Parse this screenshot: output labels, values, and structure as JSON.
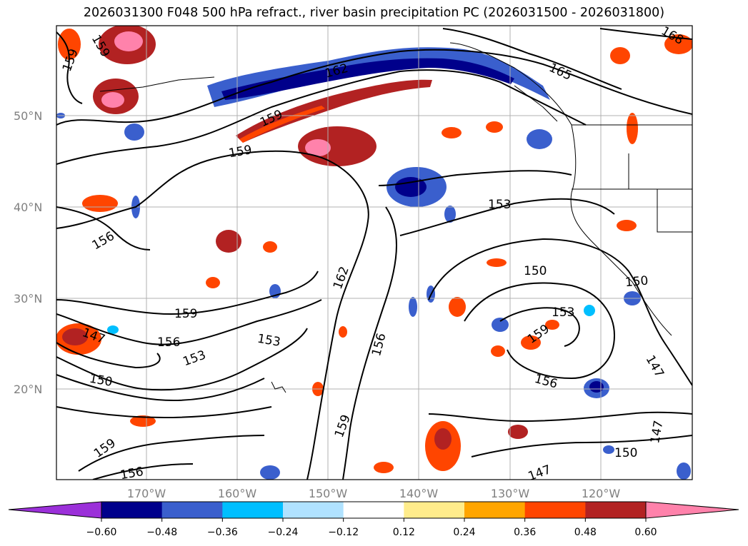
{
  "title": "2026031300 F048 500 hPa refract., river basin precipitation PC (2026031500 - 2026031800)",
  "map": {
    "lat_labels": [
      "50°N",
      "40°N",
      "30°N",
      "20°N"
    ],
    "lon_labels": [
      "170°W",
      "160°W",
      "150°W",
      "140°W",
      "130°W",
      "120°W"
    ],
    "contour_labels": [
      "159",
      "159",
      "162",
      "165",
      "168",
      "159",
      "159",
      "156",
      "153",
      "150",
      "150",
      "153",
      "162",
      "159",
      "156",
      "153",
      "150",
      "147",
      "156",
      "153",
      "159",
      "156",
      "147",
      "159",
      "159",
      "156",
      "147",
      "150",
      "147"
    ]
  },
  "colorbar": {
    "ticks": [
      "−0.60",
      "−0.48",
      "−0.36",
      "−0.24",
      "−0.12",
      "0.12",
      "0.24",
      "0.36",
      "0.48",
      "0.60"
    ],
    "colors": [
      "#9b30d9",
      "#00008b",
      "#3a5fcd",
      "#00bfff",
      "#b0e2ff",
      "#ffffff",
      "#ffec8b",
      "#ffa500",
      "#ff4500",
      "#b22222",
      "#ff82ab"
    ]
  }
}
